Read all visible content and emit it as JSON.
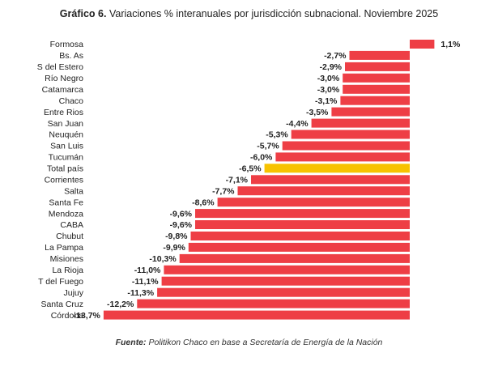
{
  "title": {
    "prefix": "Gráfico 6.",
    "text": "Variaciones % interanuales por jurisdicción subnacional. Noviembre 2025"
  },
  "source": {
    "prefix": "Fuente:",
    "text": "Politikon Chaco en base a Secretaría de Energía de la Nación"
  },
  "colors": {
    "bar": "#ee3e45",
    "highlight": "#f7c200"
  },
  "chart_data": {
    "type": "bar",
    "orientation": "horizontal",
    "title": "Variaciones % interanuales por jurisdicción subnacional. Noviembre 2025",
    "highlight_category": "Total país",
    "categories": [
      "Formosa",
      "Bs. As",
      "S del Estero",
      "Río Negro",
      "Catamarca",
      "Chaco",
      "Entre Rios",
      "San Juan",
      "Neuquén",
      "San Luis",
      "Tucumán",
      "Total país",
      "Corrientes",
      "Salta",
      "Santa Fe",
      "Mendoza",
      "CABA",
      "Chubut",
      "La Pampa",
      "Misiones",
      "La Rioja",
      "T del Fuego",
      "Jujuy",
      "Santa Cruz",
      "Córdoba"
    ],
    "values": [
      1.1,
      -2.7,
      -2.9,
      -3.0,
      -3.0,
      -3.1,
      -3.5,
      -4.4,
      -5.3,
      -5.7,
      -6.0,
      -6.5,
      -7.1,
      -7.7,
      -8.6,
      -9.6,
      -9.6,
      -9.8,
      -9.9,
      -10.3,
      -11.0,
      -11.1,
      -11.3,
      -12.2,
      -13.7
    ],
    "value_labels": [
      "1,1%",
      "-2,7%",
      "-2,9%",
      "-3,0%",
      "-3,0%",
      "-3,1%",
      "-3,5%",
      "-4,4%",
      "-5,3%",
      "-5,7%",
      "-6,0%",
      "-6,5%",
      "-7,1%",
      "-7,7%",
      "-8,6%",
      "-9,6%",
      "-9,6%",
      "-9,8%",
      "-9,9%",
      "-10,3%",
      "-11,0%",
      "-11,1%",
      "-11,3%",
      "-12,2%",
      "-13,7%"
    ],
    "xlim": [
      -13.7,
      1.1
    ],
    "grid": false,
    "legend": "none"
  }
}
